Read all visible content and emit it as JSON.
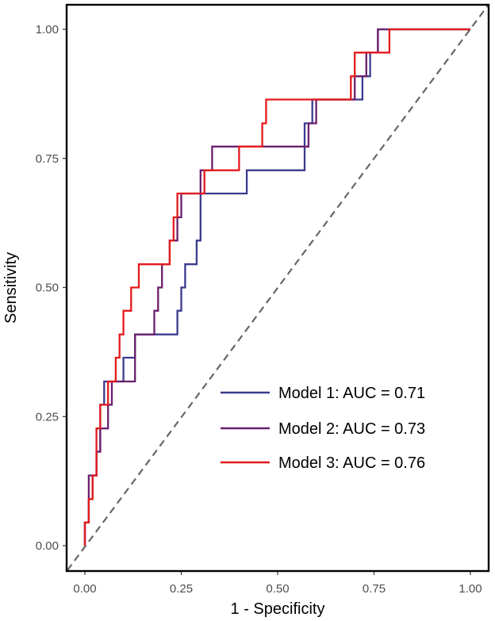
{
  "chart_data": {
    "type": "line",
    "title": "",
    "xlabel": "1 - Specificity",
    "ylabel": "Sensitivity",
    "xlim": [
      0,
      1
    ],
    "ylim": [
      0,
      1
    ],
    "x_ticks": [
      0,
      0.25,
      0.5,
      0.75,
      1
    ],
    "x_tick_labels": [
      "0.00",
      "0.25",
      "0.50",
      "0.75",
      "1.00"
    ],
    "y_ticks": [
      0,
      0.25,
      0.5,
      0.75,
      1
    ],
    "y_tick_labels": [
      "0.00",
      "0.25",
      "0.50",
      "0.75",
      "1.00"
    ],
    "grid": false,
    "legend_position": "bottom-right",
    "reference_line": {
      "x": [
        0,
        1
      ],
      "y": [
        0,
        1
      ],
      "style": "dashed",
      "color": "#666666"
    },
    "series": [
      {
        "name": "Model 1: AUC = 0.71",
        "color": "#3b3b8f",
        "points": [
          [
            0,
            0
          ],
          [
            0,
            0.045
          ],
          [
            0.01,
            0.045
          ],
          [
            0.01,
            0.09
          ],
          [
            0.02,
            0.09
          ],
          [
            0.02,
            0.136
          ],
          [
            0.03,
            0.136
          ],
          [
            0.03,
            0.182
          ],
          [
            0.04,
            0.182
          ],
          [
            0.04,
            0.227
          ],
          [
            0.04,
            0.273
          ],
          [
            0.05,
            0.273
          ],
          [
            0.05,
            0.318
          ],
          [
            0.1,
            0.318
          ],
          [
            0.1,
            0.364
          ],
          [
            0.13,
            0.364
          ],
          [
            0.13,
            0.409
          ],
          [
            0.2,
            0.409
          ],
          [
            0.2,
            0.409
          ],
          [
            0.24,
            0.409
          ],
          [
            0.24,
            0.455
          ],
          [
            0.25,
            0.455
          ],
          [
            0.25,
            0.5
          ],
          [
            0.26,
            0.5
          ],
          [
            0.26,
            0.545
          ],
          [
            0.29,
            0.545
          ],
          [
            0.29,
            0.591
          ],
          [
            0.3,
            0.591
          ],
          [
            0.3,
            0.682
          ],
          [
            0.42,
            0.682
          ],
          [
            0.42,
            0.727
          ],
          [
            0.57,
            0.727
          ],
          [
            0.57,
            0.818
          ],
          [
            0.59,
            0.818
          ],
          [
            0.59,
            0.864
          ],
          [
            0.72,
            0.864
          ],
          [
            0.72,
            0.909
          ],
          [
            0.74,
            0.909
          ],
          [
            0.74,
            0.955
          ],
          [
            0.76,
            0.955
          ],
          [
            0.76,
            1
          ],
          [
            1,
            1
          ]
        ]
      },
      {
        "name": "Model 2: AUC = 0.73",
        "color": "#6b1f6e",
        "points": [
          [
            0,
            0
          ],
          [
            0,
            0.045
          ],
          [
            0.01,
            0.045
          ],
          [
            0.01,
            0.136
          ],
          [
            0.03,
            0.136
          ],
          [
            0.03,
            0.182
          ],
          [
            0.04,
            0.182
          ],
          [
            0.04,
            0.227
          ],
          [
            0.06,
            0.227
          ],
          [
            0.06,
            0.273
          ],
          [
            0.07,
            0.273
          ],
          [
            0.07,
            0.318
          ],
          [
            0.13,
            0.318
          ],
          [
            0.13,
            0.409
          ],
          [
            0.18,
            0.409
          ],
          [
            0.18,
            0.455
          ],
          [
            0.19,
            0.455
          ],
          [
            0.19,
            0.5
          ],
          [
            0.2,
            0.5
          ],
          [
            0.2,
            0.545
          ],
          [
            0.22,
            0.545
          ],
          [
            0.22,
            0.591
          ],
          [
            0.24,
            0.591
          ],
          [
            0.24,
            0.636
          ],
          [
            0.25,
            0.636
          ],
          [
            0.25,
            0.682
          ],
          [
            0.3,
            0.682
          ],
          [
            0.3,
            0.727
          ],
          [
            0.33,
            0.727
          ],
          [
            0.33,
            0.773
          ],
          [
            0.58,
            0.773
          ],
          [
            0.58,
            0.818
          ],
          [
            0.6,
            0.818
          ],
          [
            0.6,
            0.864
          ],
          [
            0.7,
            0.864
          ],
          [
            0.7,
            0.909
          ],
          [
            0.73,
            0.909
          ],
          [
            0.73,
            0.955
          ],
          [
            0.76,
            0.955
          ],
          [
            0.76,
            1
          ],
          [
            1,
            1
          ]
        ]
      },
      {
        "name": "Model 3: AUC = 0.76",
        "color": "#e41a1c",
        "points": [
          [
            0,
            0
          ],
          [
            0,
            0.045
          ],
          [
            0.01,
            0.045
          ],
          [
            0.01,
            0.09
          ],
          [
            0.02,
            0.09
          ],
          [
            0.02,
            0.136
          ],
          [
            0.03,
            0.136
          ],
          [
            0.03,
            0.182
          ],
          [
            0.03,
            0.227
          ],
          [
            0.04,
            0.227
          ],
          [
            0.04,
            0.273
          ],
          [
            0.06,
            0.273
          ],
          [
            0.06,
            0.318
          ],
          [
            0.08,
            0.318
          ],
          [
            0.08,
            0.364
          ],
          [
            0.09,
            0.364
          ],
          [
            0.09,
            0.409
          ],
          [
            0.1,
            0.409
          ],
          [
            0.1,
            0.455
          ],
          [
            0.12,
            0.455
          ],
          [
            0.12,
            0.5
          ],
          [
            0.14,
            0.5
          ],
          [
            0.14,
            0.545
          ],
          [
            0.22,
            0.545
          ],
          [
            0.22,
            0.591
          ],
          [
            0.23,
            0.591
          ],
          [
            0.23,
            0.636
          ],
          [
            0.24,
            0.636
          ],
          [
            0.24,
            0.682
          ],
          [
            0.31,
            0.682
          ],
          [
            0.31,
            0.727
          ],
          [
            0.4,
            0.727
          ],
          [
            0.4,
            0.773
          ],
          [
            0.46,
            0.773
          ],
          [
            0.46,
            0.818
          ],
          [
            0.47,
            0.818
          ],
          [
            0.47,
            0.864
          ],
          [
            0.69,
            0.864
          ],
          [
            0.69,
            0.909
          ],
          [
            0.7,
            0.909
          ],
          [
            0.7,
            0.955
          ],
          [
            0.79,
            0.955
          ],
          [
            0.79,
            1
          ],
          [
            1,
            1
          ]
        ]
      }
    ]
  }
}
